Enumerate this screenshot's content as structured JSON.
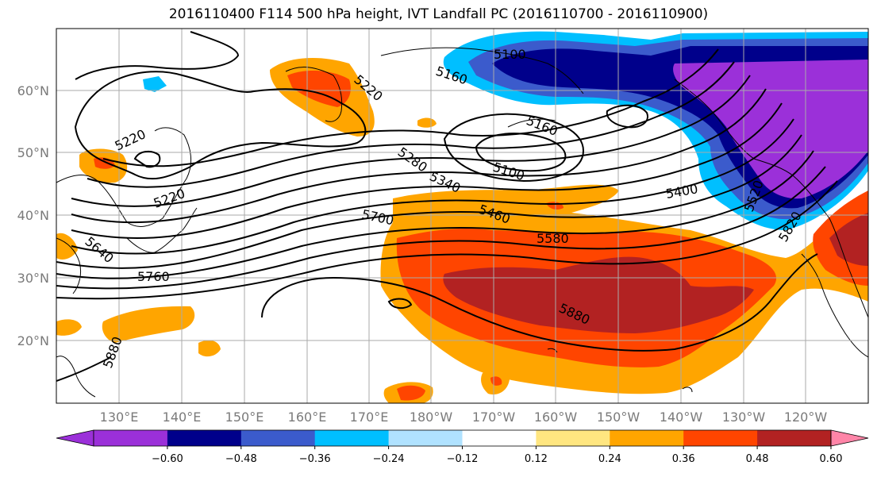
{
  "title": "2016110400 F114 500 hPa height, IVT Landfall PC (2016110700 - 2016110900)",
  "lat_labels": [
    "60°N",
    "50°N",
    "40°N",
    "30°N",
    "20°N"
  ],
  "lon_labels": [
    "130°E",
    "140°E",
    "150°E",
    "160°E",
    "170°E",
    "180°W",
    "170°W",
    "160°W",
    "150°W",
    "140°W",
    "130°W",
    "120°W"
  ],
  "colorbar": {
    "colors": [
      "#9b30d9",
      "#00008b",
      "#3b5bcc",
      "#00bfff",
      "#b0e2ff",
      "#ffffff",
      "#ffe680",
      "#ffa500",
      "#ff4500",
      "#b22222",
      "#ff85a8"
    ],
    "labels": [
      "−0.60",
      "−0.48",
      "−0.36",
      "−0.24",
      "−0.12",
      "0.12",
      "0.24",
      "0.36",
      "0.48",
      "0.60"
    ]
  },
  "contour_labels": [
    "5100",
    "5160",
    "5220",
    "5220",
    "5220",
    "5280",
    "5340",
    "5460",
    "5580",
    "5700",
    "5160",
    "5100",
    "5400",
    "5760",
    "5640",
    "5880",
    "5880",
    "5820",
    "5520"
  ]
}
